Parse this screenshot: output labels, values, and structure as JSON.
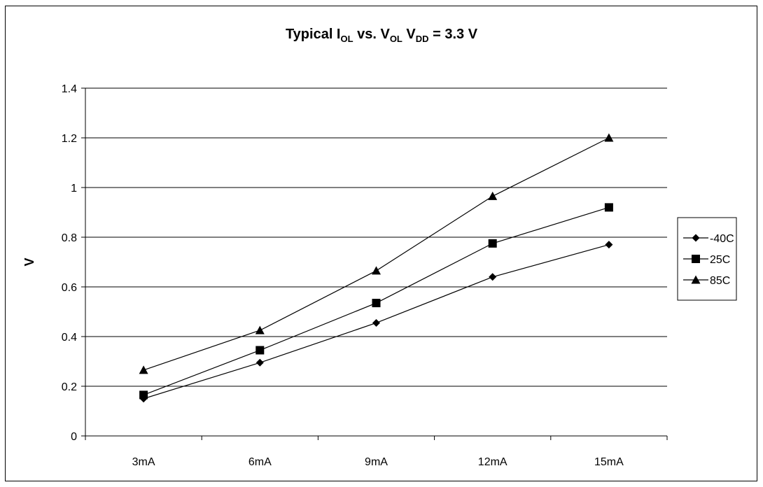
{
  "chart_data": {
    "type": "line",
    "title": {
      "parts": [
        {
          "text": "Typical I",
          "sub": false
        },
        {
          "text": "OL",
          "sub": true
        },
        {
          "text": " vs. V",
          "sub": false
        },
        {
          "text": "OL",
          "sub": true
        },
        {
          "text": " V",
          "sub": false
        },
        {
          "text": "DD",
          "sub": true
        },
        {
          "text": " = 3.3 V",
          "sub": false
        }
      ]
    },
    "xlabel": "",
    "ylabel": "V",
    "categories": [
      "3mA",
      "6mA",
      "9mA",
      "12mA",
      "15mA"
    ],
    "ylim": [
      0,
      1.4
    ],
    "yticks": [
      0,
      0.2,
      0.4,
      0.6,
      0.8,
      1,
      1.2,
      1.4
    ],
    "ytick_labels": [
      "0",
      "0.2",
      "0.4",
      "0.6",
      "0.8",
      "1",
      "1.2",
      "1.4"
    ],
    "grid": "horizontal",
    "legend_position": "right",
    "series": [
      {
        "name": "-40C",
        "marker": "diamond",
        "values": [
          0.15,
          0.295,
          0.455,
          0.64,
          0.77
        ]
      },
      {
        "name": "25C",
        "marker": "square",
        "values": [
          0.165,
          0.345,
          0.535,
          0.775,
          0.92
        ]
      },
      {
        "name": "85C",
        "marker": "triangle",
        "values": [
          0.265,
          0.425,
          0.665,
          0.965,
          1.2
        ]
      }
    ],
    "colors": {
      "line": "#000000",
      "grid": "#000000",
      "background": "#ffffff"
    }
  }
}
